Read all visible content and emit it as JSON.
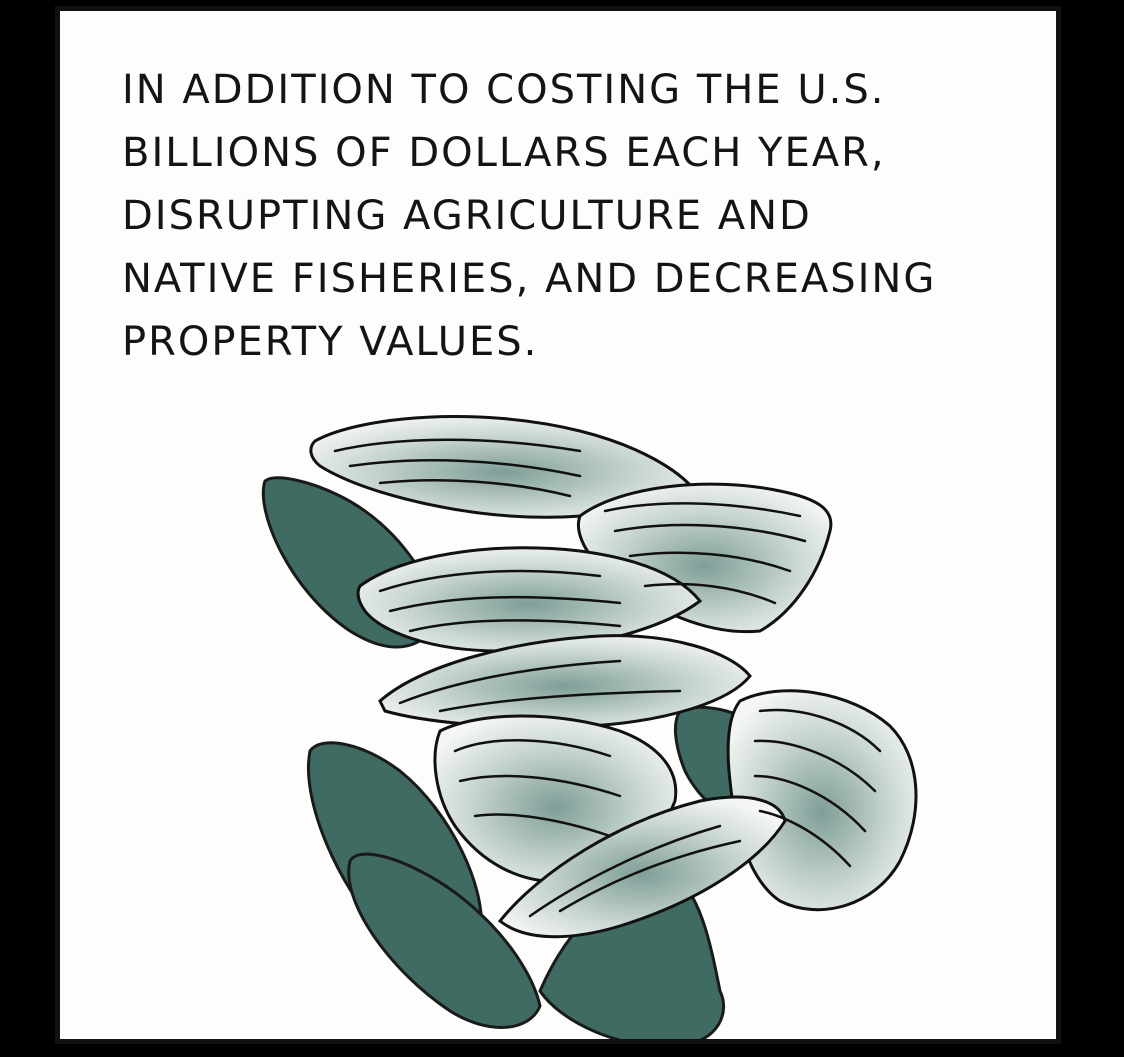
{
  "caption": {
    "lines": [
      "IN ADDITION TO COSTING THE U.S.",
      "BILLIONS OF DOLLARS EACH YEAR,",
      "DISRUPTING AGRICULTURE AND",
      "NATIVE FISHERIES, AND DECREASING",
      "PROPERTY VALUES."
    ]
  },
  "colors": {
    "background": "#000000",
    "panel": "#fdfdfb",
    "ink": "#141414",
    "shell_dark": "#3f6b62",
    "shell_wash": "#8fa8a2"
  },
  "illustration": {
    "subject": "zebra-mussel-cluster"
  }
}
